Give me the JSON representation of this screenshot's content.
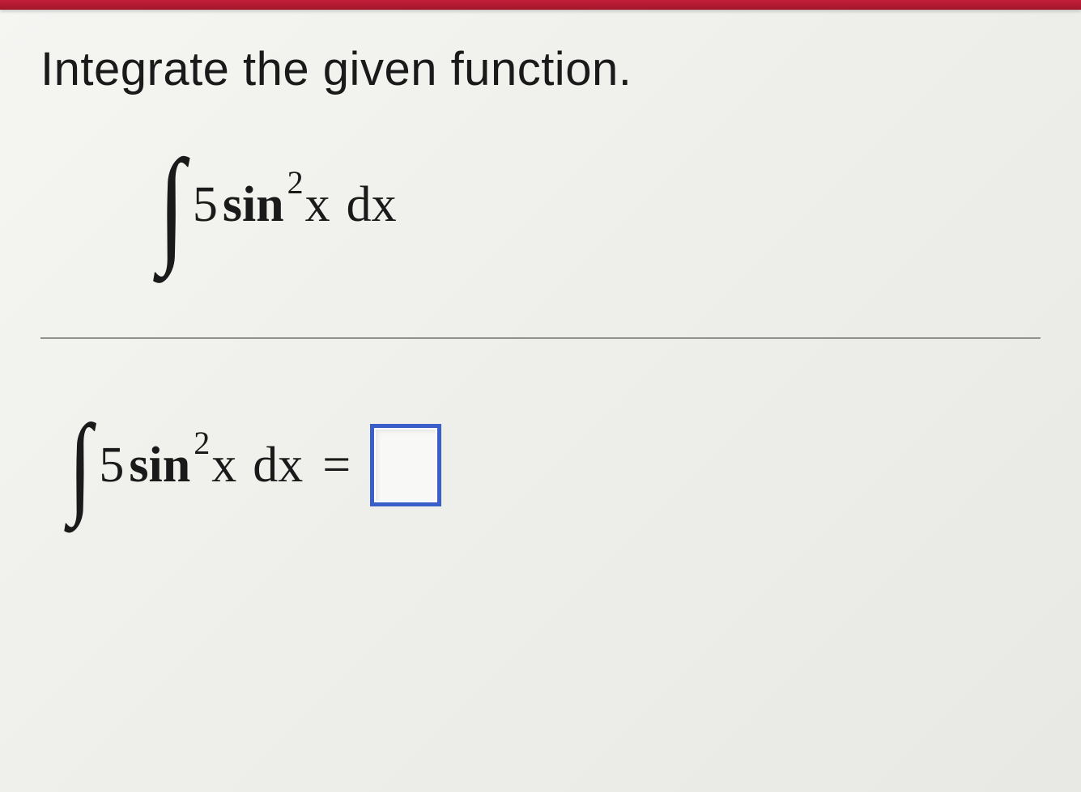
{
  "prompt": "Integrate the given function.",
  "integral_display": {
    "coef": "5",
    "func": "sin",
    "exponent": "2",
    "var": "x",
    "dx": "dx"
  },
  "answer_line": {
    "coef": "5",
    "func": "sin",
    "exponent": "2",
    "var": "x",
    "dx": "dx",
    "equals": "="
  },
  "colors": {
    "top_bar": "#c41e3a",
    "text": "#1a1a1a",
    "divider": "#999999",
    "answer_box_border": "#3a5fc8",
    "background": "#f0f0ec"
  }
}
